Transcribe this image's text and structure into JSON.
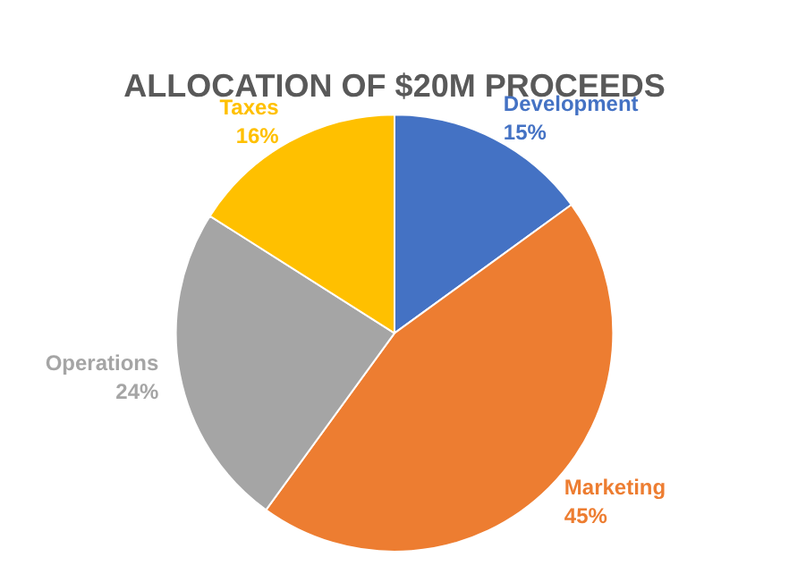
{
  "chart_data": {
    "type": "pie",
    "title": "ALLOCATION OF $20M PROCEEDS",
    "categories": [
      "Development",
      "Marketing",
      "Operations",
      "Taxes"
    ],
    "values": [
      15,
      45,
      24,
      16
    ],
    "colors": [
      "#4472c4",
      "#ed7d31",
      "#a5a5a5",
      "#ffc000"
    ],
    "value_labels": [
      "15%",
      "45%",
      "24%",
      "16%"
    ],
    "legend": false
  }
}
